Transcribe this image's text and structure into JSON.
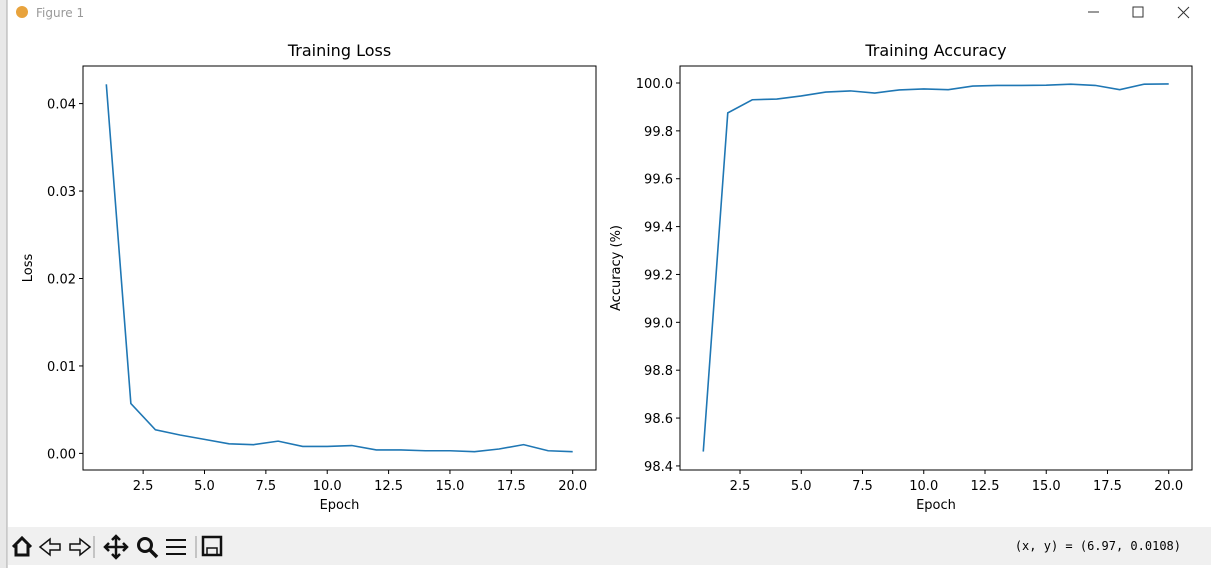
{
  "window": {
    "title": "Figure 1",
    "status": "(x, y) = (6.97, 0.0108)"
  },
  "chart_data": [
    {
      "type": "line",
      "title": "Training Loss",
      "x_label": "Epoch",
      "y_label": "Loss",
      "color": "#1f77b4",
      "x": [
        1,
        2,
        3,
        4,
        5,
        6,
        7,
        8,
        9,
        10,
        11,
        12,
        13,
        14,
        15,
        16,
        17,
        18,
        19,
        20
      ],
      "values": [
        0.0422,
        0.0057,
        0.0027,
        0.0021,
        0.0016,
        0.0011,
        0.001,
        0.0014,
        0.0008,
        0.0008,
        0.0009,
        0.0004,
        0.0004,
        0.0003,
        0.0003,
        0.0002,
        0.0005,
        0.001,
        0.0003,
        0.0002
      ],
      "xlim": [
        0.05,
        20.95
      ],
      "xticks": [
        2.5,
        {
          "value": 5,
          "label": "5.0"
        },
        7.5,
        {
          "value": 10,
          "label": "10.0"
        },
        12.5,
        {
          "value": 15,
          "label": "15.0"
        },
        17.5,
        {
          "value": 20,
          "label": "20.0"
        }
      ],
      "ylim": [
        -0.0019,
        0.0443
      ],
      "yticks": [
        {
          "value": 0,
          "label": "0.00"
        },
        0.01,
        0.02,
        0.03,
        0.04
      ]
    },
    {
      "type": "line",
      "title": "Training Accuracy",
      "x_label": "Epoch",
      "y_label": "Accuracy (%)",
      "color": "#1f77b4",
      "x": [
        1,
        2,
        3,
        4,
        5,
        6,
        7,
        8,
        9,
        10,
        11,
        12,
        13,
        14,
        15,
        16,
        17,
        18,
        19,
        20
      ],
      "values": [
        98.46,
        99.875,
        99.93,
        99.933,
        99.946,
        99.962,
        99.967,
        99.958,
        99.971,
        99.975,
        99.972,
        99.987,
        99.99,
        99.99,
        99.991,
        99.995,
        99.99,
        99.972,
        99.995,
        99.996
      ],
      "xlim": [
        0.05,
        20.95
      ],
      "xticks": [
        2.5,
        {
          "value": 5,
          "label": "5.0"
        },
        7.5,
        {
          "value": 10,
          "label": "10.0"
        },
        12.5,
        {
          "value": 15,
          "label": "15.0"
        },
        17.5,
        {
          "value": 20,
          "label": "20.0"
        }
      ],
      "ylim": [
        98.383,
        100.071
      ],
      "yticks": [
        98.4,
        98.6,
        98.8,
        {
          "value": 99,
          "label": "99.0"
        },
        99.2,
        99.4,
        99.6,
        99.8,
        {
          "value": 100,
          "label": "100.0"
        }
      ]
    }
  ]
}
